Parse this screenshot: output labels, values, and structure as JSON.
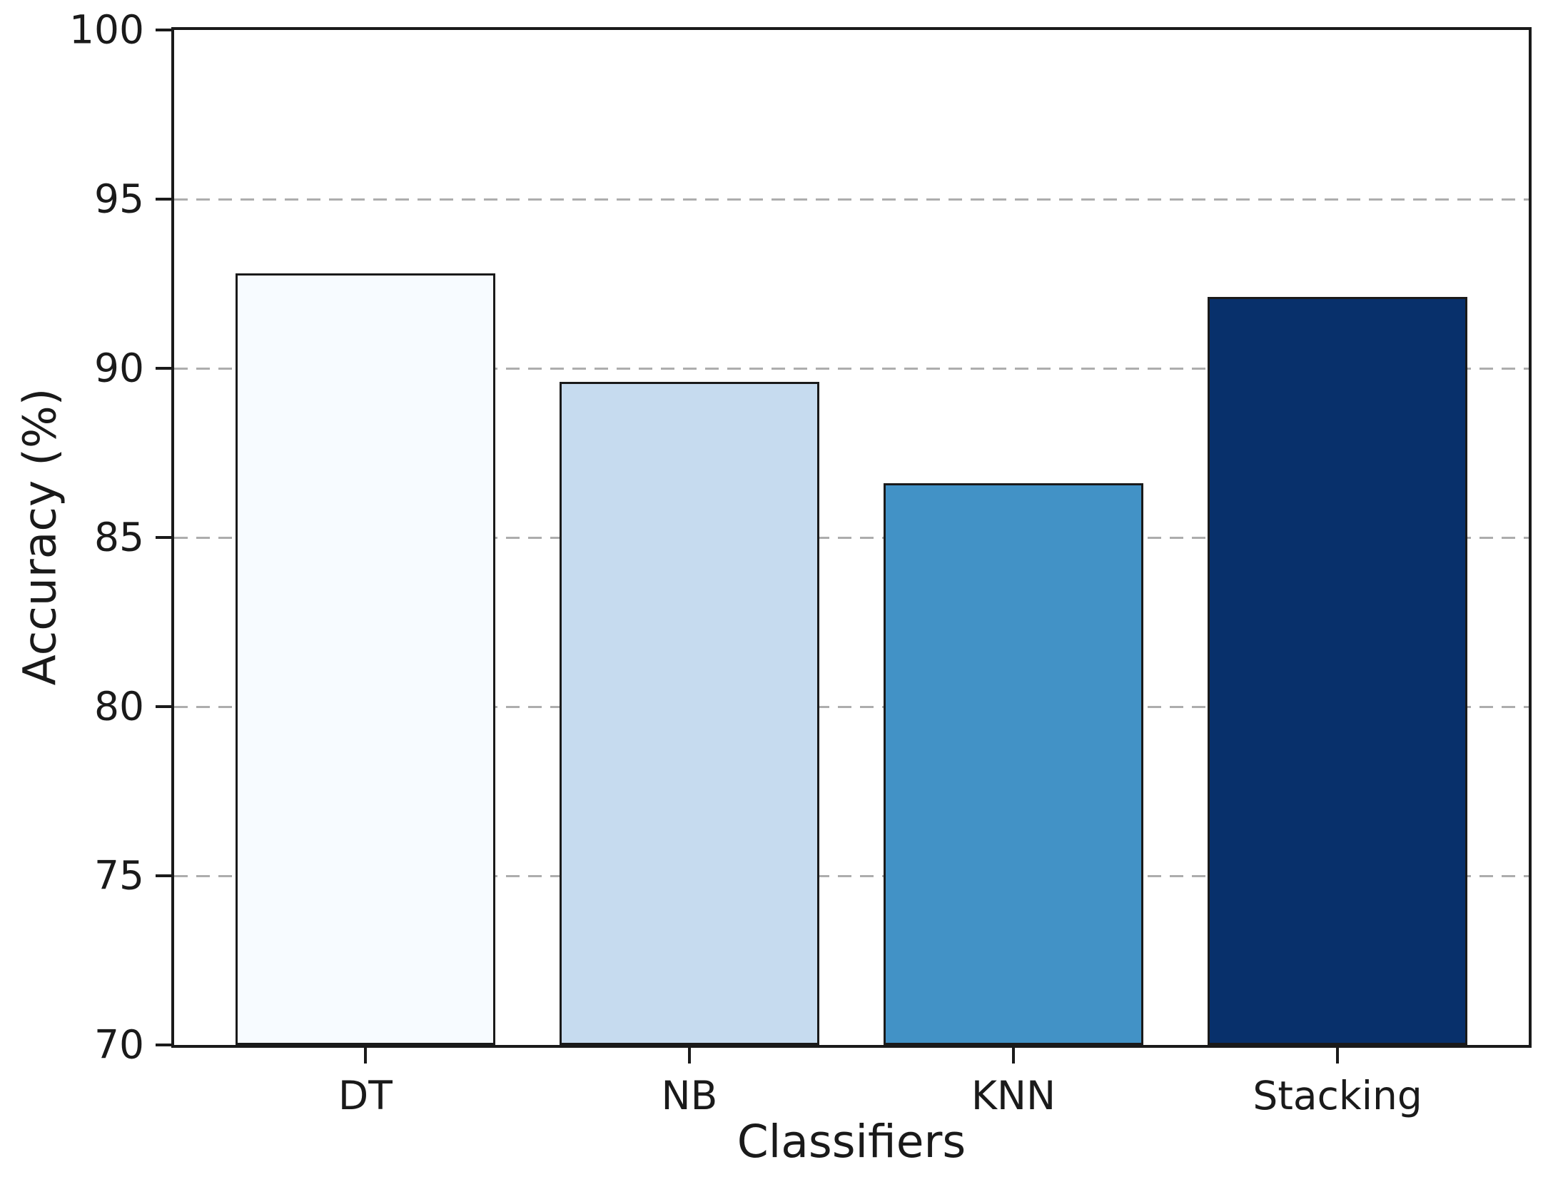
{
  "chart_data": {
    "type": "bar",
    "title": "",
    "xlabel": "Classifiers",
    "ylabel": "Accuracy (%)",
    "categories": [
      "DT",
      "NB",
      "KNN",
      "Stacking"
    ],
    "values": [
      92.8,
      89.6,
      86.6,
      92.1
    ],
    "bar_colors": [
      "#f7fbff",
      "#c6dbef",
      "#4292c6",
      "#08306b"
    ],
    "bar_edge_color": "#1a1a1a",
    "ylim": [
      70,
      100
    ],
    "yticks": [
      70,
      75,
      80,
      85,
      90,
      95,
      100
    ],
    "gridline_values": [
      75,
      80,
      85,
      90,
      95
    ],
    "gridline_color": "#adadad",
    "grid_style": "dashed",
    "legend_position": "none",
    "spine_color": "#1a1a1a"
  }
}
